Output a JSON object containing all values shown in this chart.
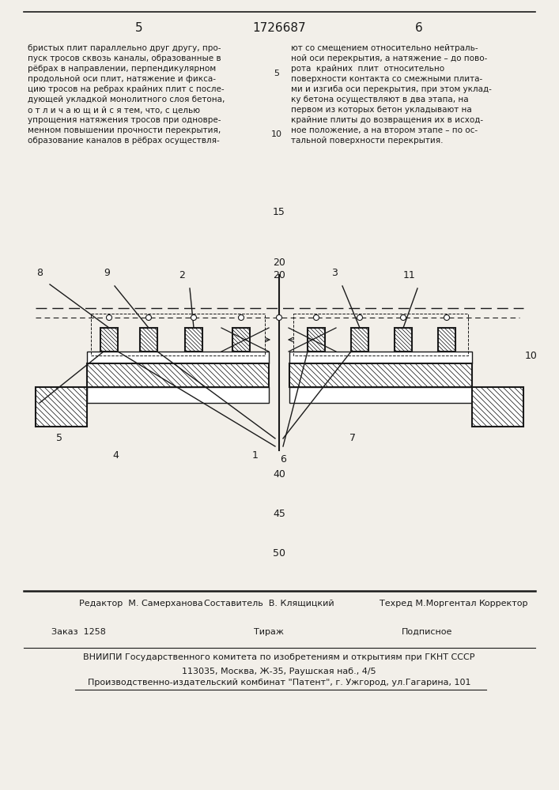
{
  "page_number_left": "5",
  "page_number_center": "1726687",
  "page_number_right": "6",
  "left_column_text": "бристых плит параллельно друг другу, про-\nпуск тросов сквозь каналы, образованные в\nрёбрах в направлении, перпендикулярном\nпродольной оси плит, натяжение и фикса-\nцию тросов на ребрах крайних плит с после-\nдующей укладкой монолитного слоя бетона,\nо т л и ч а ю щ и й с я тем, что, с целью\nупрощения натяжения тросов при одновре-\nменном повышении прочности перекрытия,\nобразование каналов в рёбрах осуществля-",
  "right_column_text": "ют со смещением относительно нейтраль-\nной оси перекрытия, а натяжение – до пово-\nрота  крайних  плит  относительно\nповерхности контакта со смежными плита-\nми и изгиба оси перекрытия, при этом уклад-\nку бетона осуществляют в два этапа, на\nпервом из которых бетон укладывают на\nкрайние плиты до возвращения их в исход-\nное положение, а на втором этапе – по ос-\nтальной поверхности перекрытия.",
  "footer_line1_col1": "Редактор  М. Самерханова",
  "footer_line1_col2": "Составитель  В. Клящицкий",
  "footer_line1_col3": "Техред М.Моргентал",
  "footer_line1_col4": "Корректор",
  "footer_line2_col1": "Заказ  1258",
  "footer_line2_col2": "Тираж",
  "footer_line2_col3": "Подписное",
  "footer_line3": "ВНИИПИ Государственного комитета по изобретениям и открытиям при ГКНТ СССР",
  "footer_line4": "113035, Москва, Ж-35, Раушская наб., 4/5",
  "footer_line5": "Производственно-издательский комбинат \"Патент\", г. Ужгород, ул.Гагарина, 101",
  "bg_color": "#f2efe9",
  "text_color": "#1a1a1a",
  "drawing_color": "#1a1a1a"
}
